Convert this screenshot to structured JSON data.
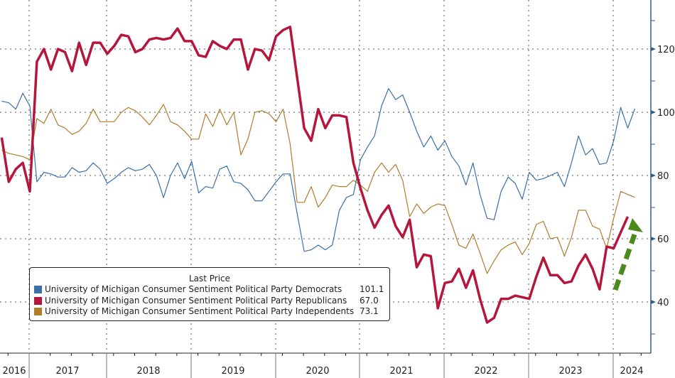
{
  "chart_data": {
    "type": "line",
    "title": "",
    "xlabel": "",
    "ylabel": "",
    "ylim": [
      27,
      137
    ],
    "yticks": [
      40,
      60,
      80,
      100,
      120
    ],
    "ytick_labels": [
      "40",
      "60",
      "80",
      "100",
      "120"
    ],
    "x_start": "2016-09",
    "x_end": "2024-05",
    "year_labels": [
      "2016",
      "2017",
      "2018",
      "2019",
      "2020",
      "2021",
      "2022",
      "2023",
      "2024"
    ],
    "grid": true,
    "legend_position": "bottom-left",
    "legend_title": "Last Price",
    "annotation": "green dashed upward arrow near 2024",
    "series": [
      {
        "name": "University of Michigan Consumer Sentiment Political Party Democrats",
        "last": "101.1",
        "color": "#3a6fa8",
        "values": [
          103.5,
          103,
          101,
          106,
          102,
          78,
          81,
          80.5,
          79.5,
          79.5,
          82.5,
          81,
          81.5,
          84,
          82,
          77.5,
          79,
          81,
          82.5,
          81.5,
          82,
          83.5,
          80,
          73,
          80,
          84,
          79,
          84.5,
          74.5,
          76.5,
          76,
          82,
          83,
          78,
          77.5,
          75.5,
          72,
          72,
          75,
          78,
          80.5,
          80.5,
          68,
          56,
          56.5,
          58,
          56.5,
          58,
          69,
          73,
          74,
          85,
          89,
          92.5,
          102,
          107.5,
          104,
          105.5,
          100,
          94,
          89,
          92.5,
          88,
          91,
          86,
          83,
          77,
          84,
          74,
          66.5,
          66,
          75,
          79.5,
          77.5,
          72.5,
          81,
          78.5,
          79,
          80,
          81,
          76.5,
          84,
          92.5,
          86.5,
          88.5,
          83.5,
          84,
          91,
          101.5,
          95,
          101.1
        ]
      },
      {
        "name": "University of Michigan Consumer Sentiment Political Party Republicans",
        "last": "67.0",
        "color": "#b5163b",
        "values": [
          92,
          78,
          82,
          84,
          75,
          116,
          120,
          113.5,
          120,
          119,
          113,
          122,
          115,
          122,
          122,
          118.5,
          121,
          124.5,
          124,
          119,
          120,
          123,
          123.5,
          123,
          123.5,
          126.5,
          122.5,
          122.5,
          118,
          117.5,
          122.5,
          121,
          120,
          123,
          123,
          113.5,
          120,
          119.5,
          116.5,
          124,
          126,
          127,
          111,
          95,
          91,
          101,
          95,
          99,
          99,
          98.5,
          84,
          76,
          69,
          63.5,
          67.5,
          70.5,
          64,
          60.5,
          66,
          51,
          55,
          54.5,
          38,
          46,
          46.5,
          50.5,
          44.5,
          50,
          41,
          33.5,
          35,
          41,
          41,
          42,
          41.5,
          41,
          48,
          54,
          48.5,
          48.5,
          46,
          46.5,
          51.5,
          55,
          50.5,
          44,
          57.5,
          57,
          62,
          67.0
        ]
      },
      {
        "name": "University of Michigan Consumer Sentiment Political Party Independents",
        "last": "73.1",
        "color": "#b07d2b",
        "values": [
          88,
          87,
          86.5,
          86,
          85,
          98,
          96.5,
          101,
          96,
          95,
          93,
          94,
          96.5,
          101,
          97,
          97,
          97,
          100,
          101.5,
          100.5,
          98.5,
          96,
          99,
          102.5,
          97,
          96,
          94,
          91.5,
          91.5,
          99.5,
          95.5,
          101,
          96,
          100,
          86.5,
          91.5,
          100,
          100.5,
          99.5,
          97,
          101,
          90,
          71.5,
          71.5,
          76.5,
          70,
          73,
          77,
          76.5,
          76.5,
          78.5,
          77,
          75,
          81,
          84,
          81,
          83.5,
          78.5,
          67,
          71,
          68,
          70,
          71,
          70.5,
          64.5,
          58,
          57,
          61.5,
          55.5,
          49,
          53,
          56.5,
          58,
          59,
          55,
          58.5,
          64.5,
          65.5,
          60,
          60.5,
          54.5,
          60.5,
          69,
          69,
          64,
          63,
          57,
          66.5,
          75,
          74,
          73.1
        ]
      }
    ]
  },
  "legend": {
    "title": "Last Price",
    "items": [
      {
        "label": "University of Michigan Consumer Sentiment Political Party Democrats",
        "value": "101.1",
        "color": "#3a6fa8"
      },
      {
        "label": "University of Michigan Consumer Sentiment Political Party Republicans",
        "value": "67.0",
        "color": "#b5163b"
      },
      {
        "label": "University of Michigan Consumer Sentiment Political Party Independents",
        "value": "73.1",
        "color": "#b07d2b"
      }
    ]
  },
  "colors": {
    "axis": "#2f5f86",
    "grid": "#555555",
    "arrow": "#4d8a1d"
  }
}
